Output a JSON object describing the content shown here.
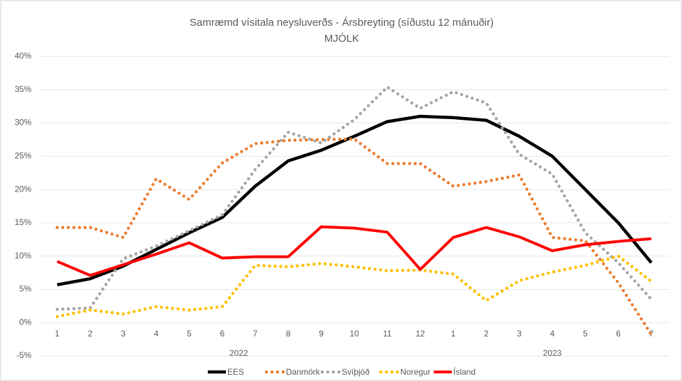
{
  "chart_data": {
    "type": "line",
    "title": "Samræmd vísitala neysluverðs - Ársbreyting (síðustu 12 mánuðir)",
    "subtitle": "MJÓLK",
    "categories": [
      "1",
      "2",
      "3",
      "4",
      "5",
      "6",
      "7",
      "8",
      "9",
      "10",
      "11",
      "12",
      "1",
      "2",
      "3",
      "4",
      "5",
      "6",
      "7"
    ],
    "groups": [
      {
        "label": "2022",
        "count": 12
      },
      {
        "label": "2023",
        "count": 7
      }
    ],
    "series": [
      {
        "name": "EES",
        "color": "#000000",
        "style": "solid",
        "values": [
          5.7,
          6.6,
          8.5,
          11,
          13.5,
          15.8,
          20.5,
          24.3,
          25.9,
          28,
          30.2,
          31,
          30.8,
          30.4,
          28,
          25,
          20,
          15,
          9
        ]
      },
      {
        "name": "Danmörk",
        "color": "#ed7d31",
        "style": "dotted",
        "values": [
          14.3,
          14.3,
          12.8,
          21.6,
          18.5,
          24,
          26.9,
          27.4,
          27.5,
          27.6,
          23.9,
          23.9,
          20.5,
          21.2,
          22.2,
          12.8,
          12.3,
          6,
          -1.8
        ]
      },
      {
        "name": "Svíþjóð",
        "color": "#a5a5a5",
        "style": "dotted",
        "values": [
          2,
          2.2,
          9.6,
          11.5,
          13.8,
          16.2,
          23,
          28.6,
          27,
          30.5,
          35.4,
          32.2,
          34.7,
          33,
          25.3,
          22.3,
          13.5,
          9,
          3.5
        ]
      },
      {
        "name": "Noregur",
        "color": "#ffc000",
        "style": "dotted",
        "values": [
          0.9,
          1.9,
          1.3,
          2.4,
          1.9,
          2.4,
          8.6,
          8.4,
          8.9,
          8.4,
          7.8,
          7.9,
          7.3,
          3.3,
          6.3,
          7.6,
          8.6,
          10,
          6.2
        ]
      },
      {
        "name": "Ísland",
        "color": "#ff0000",
        "style": "solid",
        "values": [
          9.2,
          7.1,
          8.7,
          10.3,
          12,
          9.7,
          9.9,
          9.9,
          14.4,
          14.2,
          13.6,
          8,
          12.8,
          14.3,
          12.9,
          10.8,
          11.7,
          12.2,
          12.6
        ]
      }
    ],
    "ylim": [
      -5,
      40
    ],
    "yticks": [
      {
        "value": -5,
        "label": "-5%"
      },
      {
        "value": 0,
        "label": "0%"
      },
      {
        "value": 5,
        "label": "5%"
      },
      {
        "value": 10,
        "label": "10%"
      },
      {
        "value": 15,
        "label": "15%"
      },
      {
        "value": 20,
        "label": "20%"
      },
      {
        "value": 25,
        "label": "25%"
      },
      {
        "value": 30,
        "label": "30%"
      },
      {
        "value": 35,
        "label": "35%"
      },
      {
        "value": 40,
        "label": "40%"
      }
    ],
    "grid": true,
    "legend": "bottom"
  }
}
